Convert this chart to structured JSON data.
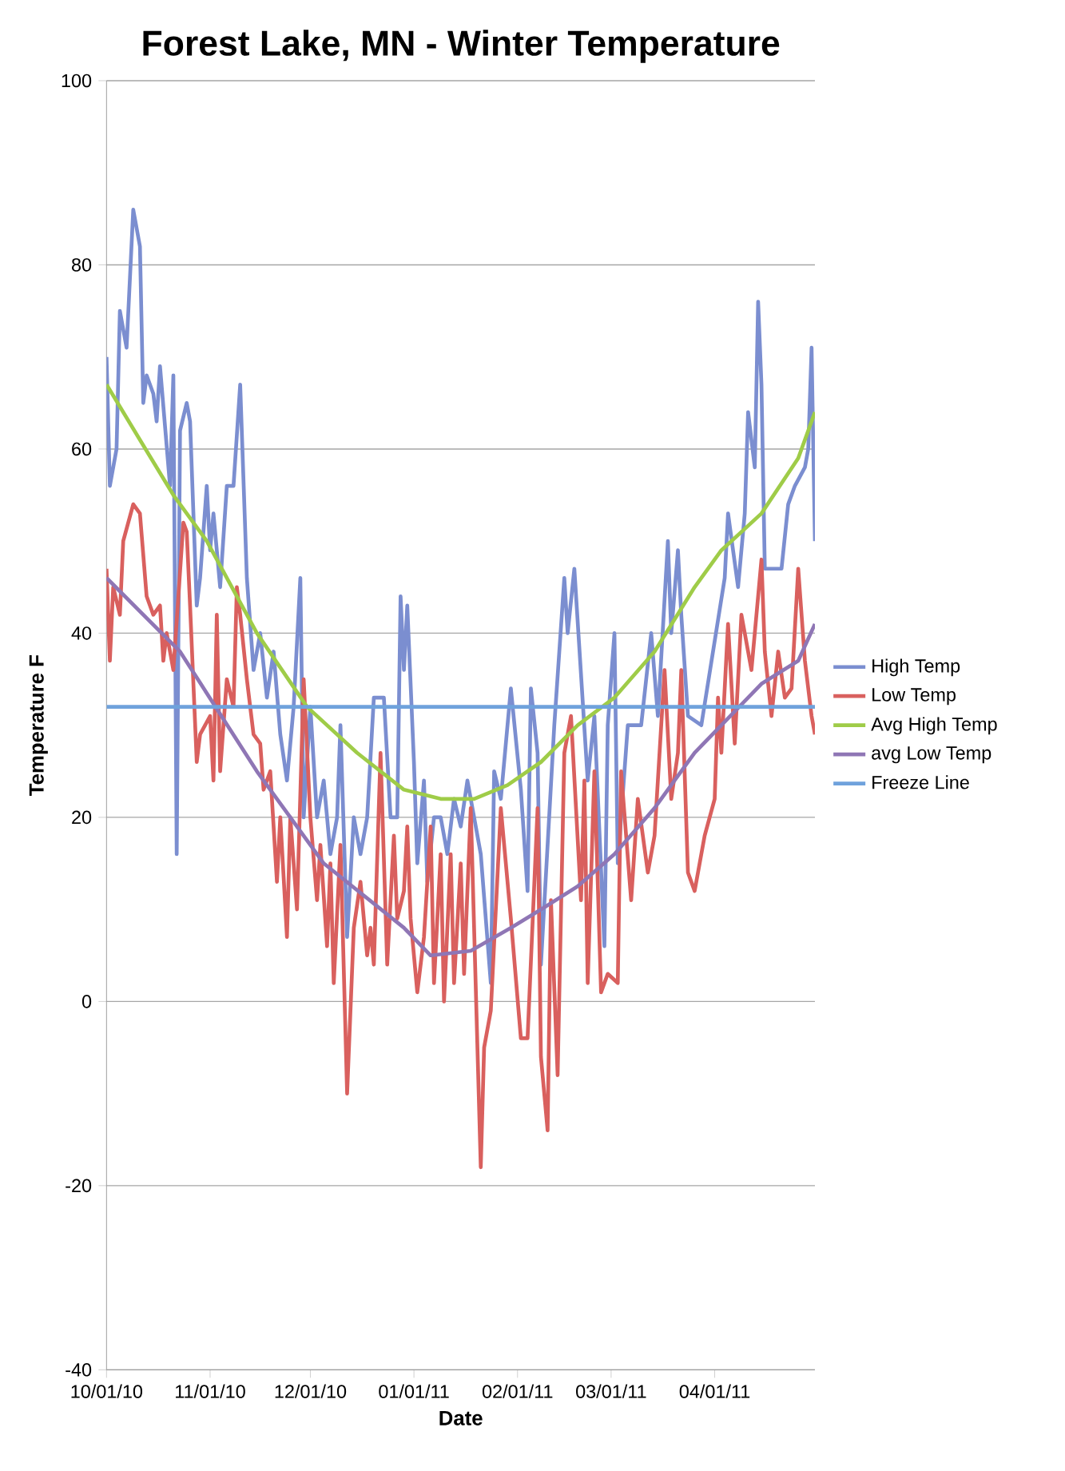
{
  "chart_data": {
    "type": "line",
    "title": "Forest Lake, MN - Winter Temperature",
    "xlabel": "Date",
    "ylabel": "Temperature F",
    "xlim": [
      "2010-10-01",
      "2011-05-01"
    ],
    "ylim": [
      -40,
      100
    ],
    "xticks": [
      {
        "value": "2010-10-01",
        "label": "10/01/10"
      },
      {
        "value": "2010-11-01",
        "label": "11/01/10"
      },
      {
        "value": "2010-12-01",
        "label": "12/01/10"
      },
      {
        "value": "2011-01-01",
        "label": "01/01/11"
      },
      {
        "value": "2011-02-01",
        "label": "02/01/11"
      },
      {
        "value": "2011-03-01",
        "label": "03/01/11"
      },
      {
        "value": "2011-04-01",
        "label": "04/01/11"
      }
    ],
    "yticks": [
      -40,
      -20,
      0,
      20,
      40,
      60,
      80,
      100
    ],
    "grid": "y",
    "legend": "right",
    "series": [
      {
        "name": "High Temp",
        "color": "#7b8ed0",
        "x": [
          "2010-10-01",
          "2010-10-02",
          "2010-10-04",
          "2010-10-05",
          "2010-10-07",
          "2010-10-09",
          "2010-10-11",
          "2010-10-12",
          "2010-10-13",
          "2010-10-15",
          "2010-10-16",
          "2010-10-17",
          "2010-10-20",
          "2010-10-21",
          "2010-10-22",
          "2010-10-23",
          "2010-10-25",
          "2010-10-26",
          "2010-10-28",
          "2010-10-29",
          "2010-10-31",
          "2010-11-01",
          "2010-11-02",
          "2010-11-04",
          "2010-11-06",
          "2010-11-08",
          "2010-11-10",
          "2010-11-12",
          "2010-11-14",
          "2010-11-16",
          "2010-11-18",
          "2010-11-20",
          "2010-11-22",
          "2010-11-24",
          "2010-11-26",
          "2010-11-28",
          "2010-11-29",
          "2010-12-01",
          "2010-12-03",
          "2010-12-05",
          "2010-12-07",
          "2010-12-09",
          "2010-12-10",
          "2010-12-12",
          "2010-12-14",
          "2010-12-16",
          "2010-12-18",
          "2010-12-20",
          "2010-12-23",
          "2010-12-25",
          "2010-12-27",
          "2010-12-28",
          "2010-12-29",
          "2010-12-30",
          "2011-01-01",
          "2011-01-02",
          "2011-01-04",
          "2011-01-05",
          "2011-01-07",
          "2011-01-09",
          "2011-01-11",
          "2011-01-13",
          "2011-01-15",
          "2011-01-17",
          "2011-01-19",
          "2011-01-21",
          "2011-01-24",
          "2011-01-25",
          "2011-01-27",
          "2011-01-30",
          "2011-02-02",
          "2011-02-04",
          "2011-02-05",
          "2011-02-07",
          "2011-02-08",
          "2011-02-12",
          "2011-02-15",
          "2011-02-16",
          "2011-02-18",
          "2011-02-22",
          "2011-02-24",
          "2011-02-27",
          "2011-02-28",
          "2011-03-02",
          "2011-03-03",
          "2011-03-06",
          "2011-03-10",
          "2011-03-13",
          "2011-03-15",
          "2011-03-18",
          "2011-03-19",
          "2011-03-21",
          "2011-03-22",
          "2011-03-24",
          "2011-03-28",
          "2011-04-04",
          "2011-04-05",
          "2011-04-08",
          "2011-04-10",
          "2011-04-11",
          "2011-04-13",
          "2011-04-14",
          "2011-04-15",
          "2011-04-16",
          "2011-04-21",
          "2011-04-23",
          "2011-04-25",
          "2011-04-28",
          "2011-04-29",
          "2011-04-30",
          "2011-05-01"
        ],
        "values": [
          70,
          56,
          60,
          75,
          71,
          86,
          82,
          65,
          68,
          66,
          63,
          69,
          56,
          68,
          16,
          62,
          65,
          63,
          43,
          46,
          56,
          49,
          53,
          45,
          56,
          56,
          67,
          46,
          36,
          40,
          33,
          38,
          29,
          24,
          32,
          46,
          20,
          32,
          20,
          24,
          16,
          20,
          30,
          7,
          20,
          16,
          20,
          33,
          33,
          20,
          20,
          44,
          36,
          43,
          26,
          15,
          24,
          13,
          20,
          20,
          16,
          22,
          19,
          24,
          20,
          16,
          2,
          25,
          22,
          34,
          23,
          12,
          34,
          27,
          4,
          30,
          46,
          40,
          47,
          24,
          31,
          6,
          30,
          40,
          15,
          30,
          30,
          40,
          31,
          50,
          40,
          49,
          42,
          31,
          30,
          46,
          53,
          45,
          53,
          64,
          58,
          76,
          67,
          47,
          47,
          54,
          56,
          58,
          60,
          71,
          50
        ]
      },
      {
        "name": "Low Temp",
        "color": "#d9605e",
        "x": [
          "2010-10-01",
          "2010-10-02",
          "2010-10-03",
          "2010-10-05",
          "2010-10-06",
          "2010-10-09",
          "2010-10-11",
          "2010-10-13",
          "2010-10-15",
          "2010-10-17",
          "2010-10-18",
          "2010-10-19",
          "2010-10-21",
          "2010-10-24",
          "2010-10-25",
          "2010-10-26",
          "2010-10-28",
          "2010-10-29",
          "2010-11-01",
          "2010-11-02",
          "2010-11-03",
          "2010-11-04",
          "2010-11-06",
          "2010-11-08",
          "2010-11-09",
          "2010-11-10",
          "2010-11-12",
          "2010-11-14",
          "2010-11-16",
          "2010-11-17",
          "2010-11-19",
          "2010-11-21",
          "2010-11-22",
          "2010-11-24",
          "2010-11-25",
          "2010-11-27",
          "2010-11-29",
          "2010-12-01",
          "2010-12-03",
          "2010-12-04",
          "2010-12-06",
          "2010-12-07",
          "2010-12-08",
          "2010-12-10",
          "2010-12-12",
          "2010-12-14",
          "2010-12-16",
          "2010-12-18",
          "2010-12-19",
          "2010-12-20",
          "2010-12-22",
          "2010-12-24",
          "2010-12-26",
          "2010-12-27",
          "2010-12-29",
          "2010-12-30",
          "2010-12-31",
          "2011-01-02",
          "2011-01-04",
          "2011-01-06",
          "2011-01-07",
          "2011-01-09",
          "2011-01-10",
          "2011-01-12",
          "2011-01-13",
          "2011-01-15",
          "2011-01-16",
          "2011-01-18",
          "2011-01-20",
          "2011-01-21",
          "2011-01-22",
          "2011-01-24",
          "2011-01-27",
          "2011-01-30",
          "2011-02-02",
          "2011-02-04",
          "2011-02-07",
          "2011-02-08",
          "2011-02-10",
          "2011-02-11",
          "2011-02-13",
          "2011-02-15",
          "2011-02-17",
          "2011-02-20",
          "2011-02-21",
          "2011-02-22",
          "2011-02-24",
          "2011-02-26",
          "2011-02-28",
          "2011-03-03",
          "2011-03-04",
          "2011-03-07",
          "2011-03-09",
          "2011-03-12",
          "2011-03-14",
          "2011-03-17",
          "2011-03-19",
          "2011-03-21",
          "2011-03-22",
          "2011-03-24",
          "2011-03-26",
          "2011-03-29",
          "2011-04-01",
          "2011-04-02",
          "2011-04-03",
          "2011-04-05",
          "2011-04-07",
          "2011-04-09",
          "2011-04-12",
          "2011-04-15",
          "2011-04-16",
          "2011-04-18",
          "2011-04-20",
          "2011-04-22",
          "2011-04-24",
          "2011-04-26",
          "2011-04-28",
          "2011-04-30",
          "2011-05-01"
        ],
        "values": [
          47,
          37,
          45,
          42,
          50,
          54,
          53,
          44,
          42,
          43,
          37,
          40,
          36,
          52,
          51,
          43,
          26,
          29,
          31,
          24,
          42,
          25,
          35,
          32,
          45,
          42,
          35,
          29,
          28,
          23,
          25,
          13,
          20,
          7,
          20,
          10,
          35,
          20,
          11,
          17,
          6,
          15,
          2,
          17,
          -10,
          8,
          13,
          5,
          8,
          4,
          27,
          4,
          18,
          9,
          12,
          19,
          9,
          1,
          7,
          19,
          2,
          16,
          0,
          16,
          2,
          15,
          3,
          21,
          -5,
          -18,
          -5,
          -1,
          21,
          9,
          -4,
          -4,
          21,
          -6,
          -14,
          11,
          -8,
          27,
          31,
          11,
          24,
          2,
          25,
          1,
          3,
          2,
          25,
          11,
          22,
          14,
          18,
          36,
          22,
          27,
          36,
          14,
          12,
          18,
          22,
          33,
          27,
          41,
          28,
          42,
          36,
          48,
          38,
          31,
          38,
          33,
          34,
          47,
          37,
          31,
          29
        ]
      },
      {
        "name": "Avg High Temp",
        "color": "#9fcc48",
        "x": [
          "2010-10-01",
          "2010-10-11",
          "2010-10-21",
          "2010-10-31",
          "2010-11-15",
          "2010-11-30",
          "2010-12-15",
          "2010-12-29",
          "2011-01-09",
          "2011-01-19",
          "2011-01-29",
          "2011-02-08",
          "2011-02-19",
          "2011-03-02",
          "2011-03-14",
          "2011-03-26",
          "2011-04-03",
          "2011-04-15",
          "2011-04-26",
          "2011-05-01"
        ],
        "values": [
          67,
          61,
          55,
          50,
          40,
          32,
          27,
          23,
          22,
          22,
          23.5,
          26,
          30,
          33,
          38,
          45,
          49,
          53,
          59,
          64
        ]
      },
      {
        "name": "avg Low Temp",
        "color": "#8f76b5",
        "x": [
          "2010-10-01",
          "2010-10-23",
          "2010-11-15",
          "2010-12-05",
          "2010-12-29",
          "2011-01-06",
          "2011-01-18",
          "2011-01-30",
          "2011-02-08",
          "2011-02-19",
          "2011-03-02",
          "2011-03-14",
          "2011-03-26",
          "2011-04-03",
          "2011-04-15",
          "2011-04-26",
          "2011-05-01"
        ],
        "values": [
          46,
          38,
          25,
          15,
          8,
          5,
          5.5,
          8,
          10,
          12.5,
          16,
          21,
          27,
          30,
          34.5,
          37,
          41
        ]
      },
      {
        "name": "Freeze Line",
        "color": "#6fa2dc",
        "x": [
          "2010-10-01",
          "2011-05-01"
        ],
        "values": [
          32,
          32
        ]
      }
    ]
  }
}
